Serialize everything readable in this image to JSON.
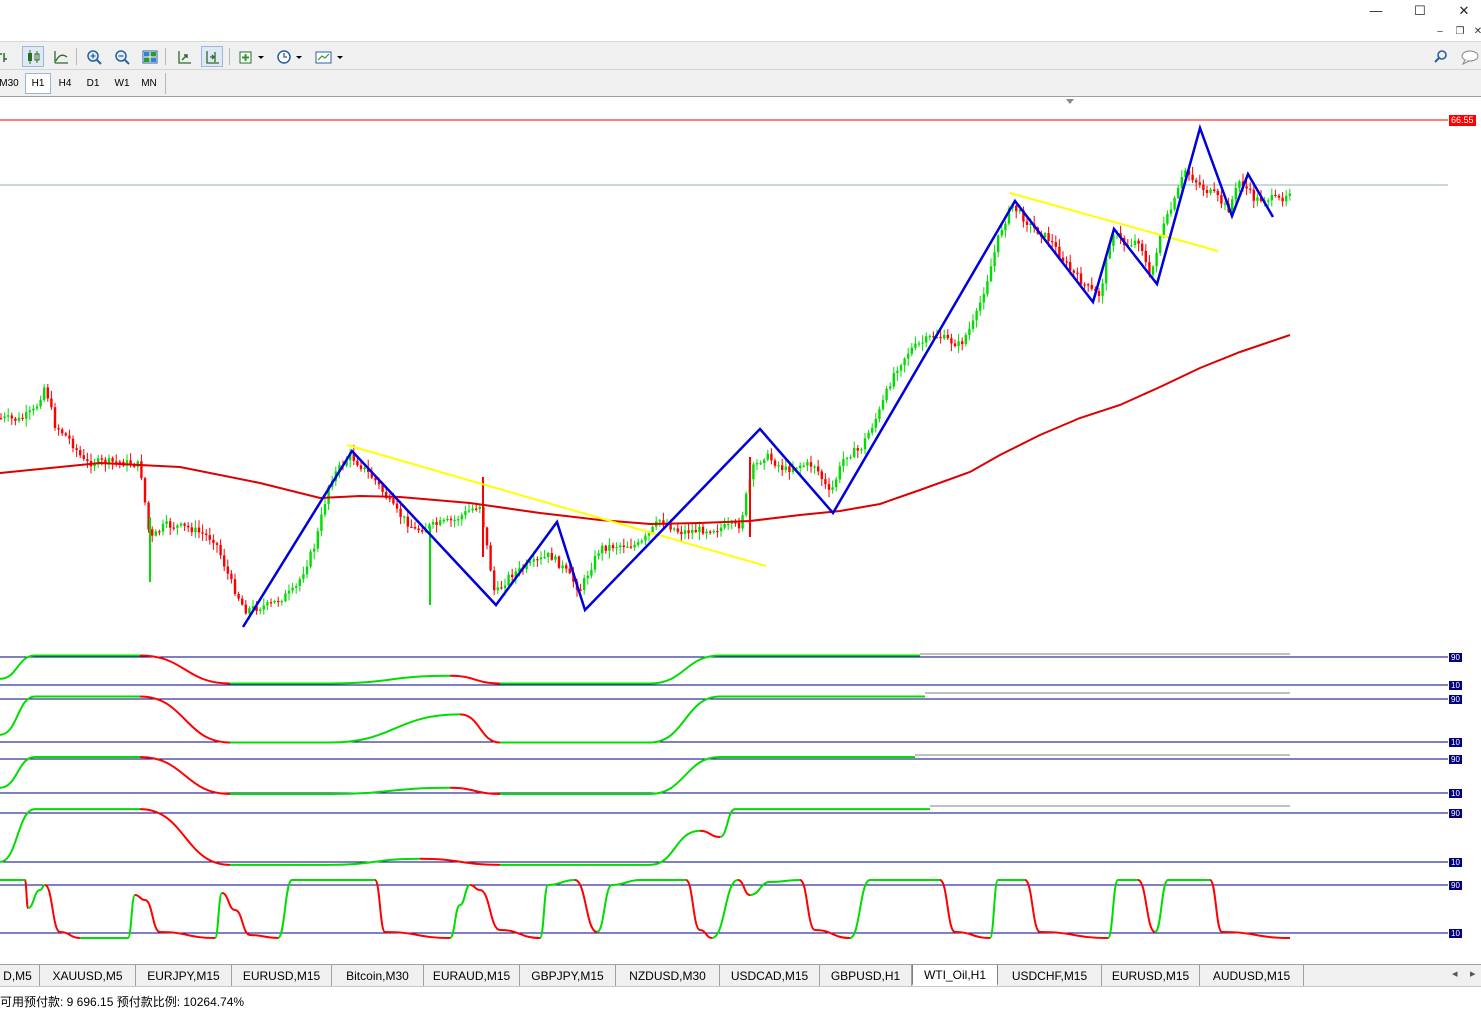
{
  "window": {
    "minimize_glyph": "—",
    "maximize_glyph": "☐",
    "close_glyph": "✕"
  },
  "mdi": {
    "minimize_glyph": "–",
    "restore_glyph": "❐",
    "close_glyph": "✕"
  },
  "toolbar": {
    "icons": [
      "bar-chart-icon",
      "candlestick-icon",
      "line-chart-icon",
      "zoom-in-icon",
      "zoom-out-icon",
      "tile-windows-icon",
      "auto-scroll-icon",
      "chart-shift-icon",
      "indicators-icon",
      "periods-icon",
      "templates-icon"
    ]
  },
  "timeframes": {
    "items": [
      "M30",
      "H1",
      "H4",
      "D1",
      "W1",
      "MN"
    ],
    "active": "H1"
  },
  "chart": {
    "price_label": "66.55",
    "oscillator_levels": [
      {
        "top": "90",
        "bottom": "10"
      },
      {
        "top": "90",
        "bottom": "10"
      },
      {
        "top": "90",
        "bottom": "10"
      },
      {
        "top": "90",
        "bottom": "10"
      },
      {
        "top": "90",
        "bottom": "10"
      }
    ],
    "colors": {
      "bull": "#00dd00",
      "bear": "#ff0000",
      "ma": "#dd0000",
      "zigzag": "#0000dd",
      "trendline": "#ffff00",
      "level_line": "#000080"
    }
  },
  "tabs": {
    "items": [
      "D,M5",
      "XAUUSD,M5",
      "EURJPY,M15",
      "EURUSD,M15",
      "Bitcoin,M30",
      "EURAUD,M15",
      "GBPJPY,M15",
      "NZDUSD,M30",
      "USDCAD,M15",
      "GBPUSD,H1",
      "WTI_Oil,H1",
      "USDCHF,M15",
      "EURUSD,M15",
      "AUDUSD,M15"
    ],
    "active": "WTI_Oil,H1",
    "scroll_left": "◂",
    "scroll_right": "▸"
  },
  "status": {
    "text": "可用预付款: 9 696.15  预付款比例: 10264.74%"
  }
}
